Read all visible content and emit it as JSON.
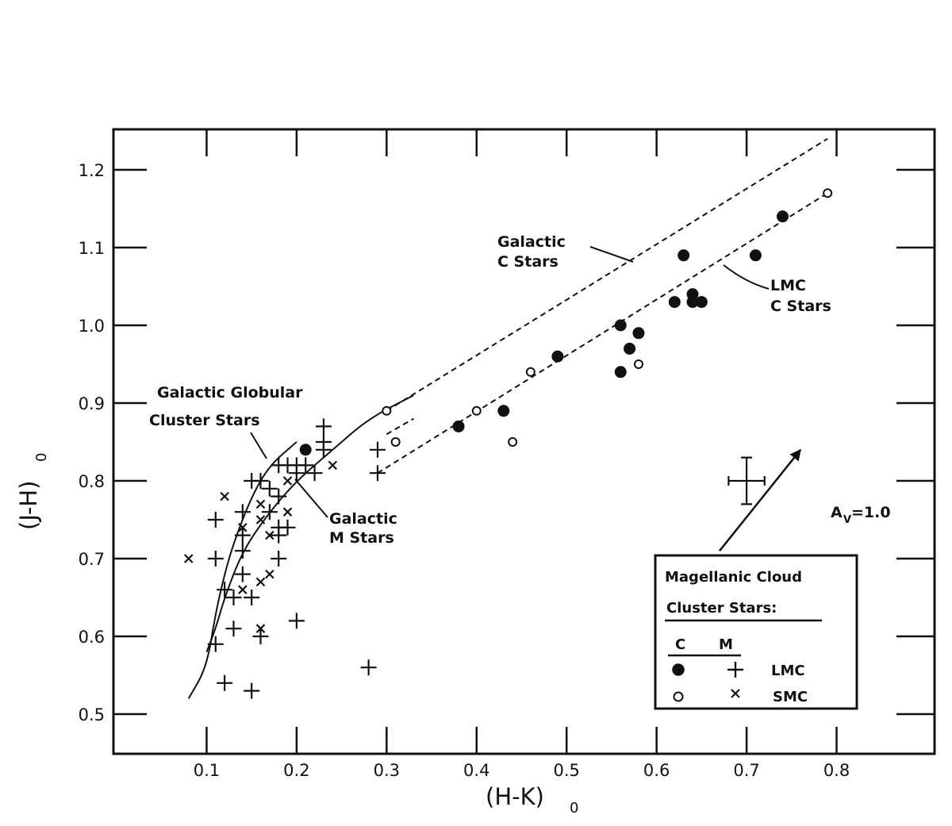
{
  "chart_data": {
    "type": "scatter",
    "xlabel": "(H-K)",
    "xlabel_sub": "0",
    "ylabel": "(J-H)",
    "ylabel_sub": "0",
    "xlim": [
      0.0,
      0.9
    ],
    "ylim": [
      0.45,
      1.25
    ],
    "x_ticks": [
      0.1,
      0.2,
      0.3,
      0.4,
      0.5,
      0.6,
      0.7,
      0.8
    ],
    "x_tick_labels": [
      "0.1",
      "0.2",
      "0.3",
      "0.4",
      "0.5",
      "0.6",
      "0.7",
      "0.8"
    ],
    "y_ticks": [
      0.5,
      0.6,
      0.7,
      0.8,
      0.9,
      1.0,
      1.1,
      1.2
    ],
    "y_tick_labels": [
      "0.5",
      "0.6",
      "0.7",
      "0.8",
      "0.9",
      "1.0",
      "1.1",
      "1.2"
    ],
    "grid": false,
    "legend_position": "bottom-right",
    "legend": {
      "title_line1": "Magellanic Cloud",
      "title_line2": "Cluster Stars:",
      "col_c": "C",
      "col_m": "M",
      "row_lmc": "LMC",
      "row_smc": "SMC"
    },
    "series": [
      {
        "name": "LMC C",
        "marker": "filled-circle",
        "points": [
          [
            0.21,
            0.84
          ],
          [
            0.38,
            0.87
          ],
          [
            0.43,
            0.89
          ],
          [
            0.49,
            0.96
          ],
          [
            0.56,
            1.0
          ],
          [
            0.56,
            0.94
          ],
          [
            0.57,
            0.97
          ],
          [
            0.58,
            0.99
          ],
          [
            0.62,
            1.03
          ],
          [
            0.63,
            1.09
          ],
          [
            0.64,
            1.04
          ],
          [
            0.64,
            1.03
          ],
          [
            0.65,
            1.03
          ],
          [
            0.71,
            1.09
          ],
          [
            0.74,
            1.14
          ]
        ]
      },
      {
        "name": "SMC C",
        "marker": "open-circle",
        "points": [
          [
            0.3,
            0.89
          ],
          [
            0.31,
            0.85
          ],
          [
            0.4,
            0.89
          ],
          [
            0.44,
            0.85
          ],
          [
            0.46,
            0.94
          ],
          [
            0.58,
            0.95
          ],
          [
            0.79,
            1.17
          ]
        ]
      },
      {
        "name": "LMC M",
        "marker": "plus",
        "points": [
          [
            0.11,
            0.75
          ],
          [
            0.11,
            0.7
          ],
          [
            0.11,
            0.59
          ],
          [
            0.12,
            0.66
          ],
          [
            0.12,
            0.54
          ],
          [
            0.13,
            0.65
          ],
          [
            0.13,
            0.61
          ],
          [
            0.14,
            0.76
          ],
          [
            0.14,
            0.73
          ],
          [
            0.14,
            0.71
          ],
          [
            0.14,
            0.68
          ],
          [
            0.15,
            0.8
          ],
          [
            0.15,
            0.65
          ],
          [
            0.15,
            0.53
          ],
          [
            0.16,
            0.8
          ],
          [
            0.16,
            0.6
          ],
          [
            0.17,
            0.79
          ],
          [
            0.17,
            0.76
          ],
          [
            0.18,
            0.82
          ],
          [
            0.18,
            0.78
          ],
          [
            0.18,
            0.74
          ],
          [
            0.18,
            0.73
          ],
          [
            0.18,
            0.7
          ],
          [
            0.19,
            0.82
          ],
          [
            0.19,
            0.74
          ],
          [
            0.2,
            0.82
          ],
          [
            0.2,
            0.81
          ],
          [
            0.2,
            0.62
          ],
          [
            0.21,
            0.82
          ],
          [
            0.22,
            0.81
          ],
          [
            0.23,
            0.87
          ],
          [
            0.23,
            0.85
          ],
          [
            0.23,
            0.84
          ],
          [
            0.28,
            0.56
          ],
          [
            0.29,
            0.84
          ],
          [
            0.29,
            0.81
          ]
        ]
      },
      {
        "name": "SMC M",
        "marker": "x",
        "points": [
          [
            0.08,
            0.7
          ],
          [
            0.12,
            0.78
          ],
          [
            0.14,
            0.74
          ],
          [
            0.14,
            0.66
          ],
          [
            0.16,
            0.77
          ],
          [
            0.16,
            0.75
          ],
          [
            0.16,
            0.67
          ],
          [
            0.16,
            0.61
          ],
          [
            0.17,
            0.73
          ],
          [
            0.17,
            0.68
          ],
          [
            0.19,
            0.76
          ],
          [
            0.19,
            0.8
          ],
          [
            0.24,
            0.82
          ]
        ]
      }
    ],
    "curves": [
      {
        "name": "Galactic C Stars",
        "style": "dashed",
        "points": [
          [
            0.3,
            0.89
          ],
          [
            0.79,
            1.24
          ]
        ]
      },
      {
        "name": "LMC C Stars",
        "style": "dashed",
        "points": [
          [
            0.29,
            0.81
          ],
          [
            0.79,
            1.17
          ]
        ]
      },
      {
        "name": "Galactic Globular Cluster Stars",
        "style": "solid",
        "points": [
          [
            0.08,
            0.52
          ],
          [
            0.1,
            0.56
          ],
          [
            0.11,
            0.63
          ],
          [
            0.12,
            0.68
          ],
          [
            0.13,
            0.72
          ],
          [
            0.15,
            0.78
          ],
          [
            0.17,
            0.82
          ],
          [
            0.2,
            0.85
          ]
        ]
      },
      {
        "name": "Galactic M Stars",
        "style": "solid",
        "points": [
          [
            0.1,
            0.58
          ],
          [
            0.11,
            0.61
          ],
          [
            0.12,
            0.65
          ],
          [
            0.14,
            0.71
          ],
          [
            0.17,
            0.76
          ],
          [
            0.2,
            0.8
          ],
          [
            0.24,
            0.84
          ],
          [
            0.28,
            0.88
          ],
          [
            0.33,
            0.91
          ]
        ]
      },
      {
        "name": "Galactic C short dashed",
        "style": "dashed",
        "points": [
          [
            0.3,
            0.86
          ],
          [
            0.33,
            0.88
          ]
        ]
      }
    ],
    "error_bar": {
      "x": 0.7,
      "y": 0.8,
      "dx": 0.02,
      "dy": 0.03
    },
    "reddening_vector": {
      "label": "A",
      "label_sub": "V",
      "label_value": "=1.0",
      "from": [
        0.67,
        0.71
      ],
      "to": [
        0.76,
        0.84
      ]
    },
    "annotations": {
      "galactic_c_line1": "Galactic",
      "galactic_c_line2": "C Stars",
      "lmc_c_line1": "LMC",
      "lmc_c_line2": "C Stars",
      "globular_line1": "Galactic Globular",
      "globular_line2": "Cluster Stars",
      "galactic_m_line1": "Galactic",
      "galactic_m_line2": "M Stars"
    }
  }
}
